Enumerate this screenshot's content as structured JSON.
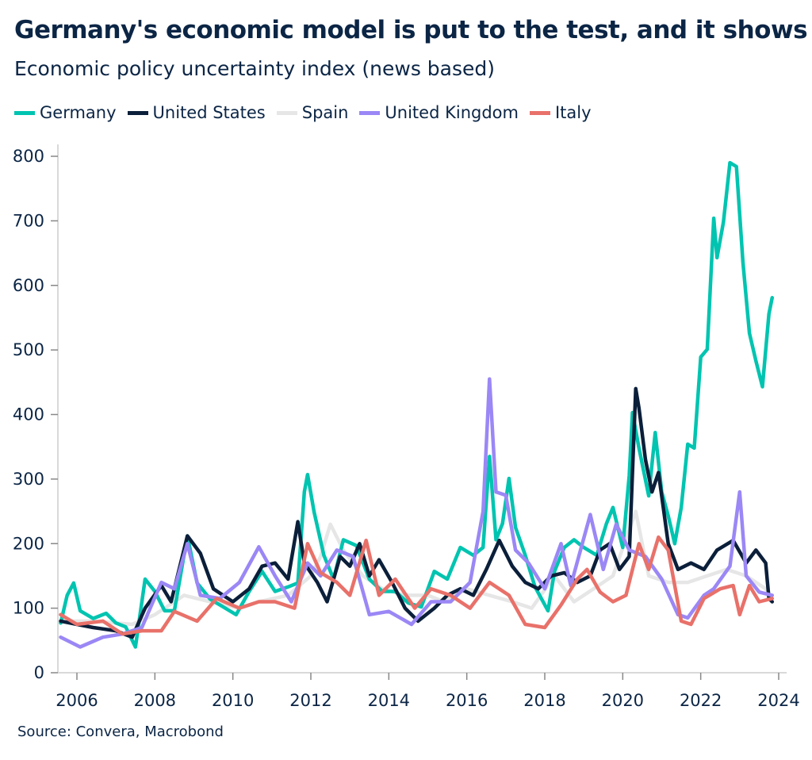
{
  "chart_data": {
    "type": "line",
    "title": "Germany's economic model is put to the test, and it shows",
    "subtitle": "Economic policy uncertainty index (news based)",
    "source": "Source: Convera, Macrobond",
    "xlabel": "",
    "ylabel": "",
    "xlim": [
      "2005-07",
      "2024-02"
    ],
    "ylim": [
      0,
      800
    ],
    "yticks": [
      0,
      100,
      200,
      300,
      400,
      500,
      600,
      700,
      800
    ],
    "xticks": [
      "2006",
      "2008",
      "2010",
      "2012",
      "2014",
      "2016",
      "2018",
      "2020",
      "2022",
      "2024"
    ],
    "grid": false,
    "legend_position": "top-left",
    "series": [
      {
        "name": "Germany",
        "color": "#00c4b0",
        "points": [
          [
            "2005-08",
            77
          ],
          [
            "2005-10",
            120
          ],
          [
            "2005-12",
            139
          ],
          [
            "2006-02",
            96
          ],
          [
            "2006-06",
            84
          ],
          [
            "2006-10",
            92
          ],
          [
            "2007-01",
            77
          ],
          [
            "2007-04",
            71
          ],
          [
            "2007-07",
            40
          ],
          [
            "2007-10",
            145
          ],
          [
            "2008-01",
            126
          ],
          [
            "2008-04",
            96
          ],
          [
            "2008-07",
            96
          ],
          [
            "2008-11",
            212
          ],
          [
            "2009-02",
            139
          ],
          [
            "2009-06",
            114
          ],
          [
            "2009-10",
            102
          ],
          [
            "2010-02",
            90
          ],
          [
            "2010-06",
            126
          ],
          [
            "2010-10",
            157
          ],
          [
            "2011-02",
            126
          ],
          [
            "2011-06",
            133
          ],
          [
            "2011-09",
            139
          ],
          [
            "2011-11",
            280
          ],
          [
            "2011-12",
            307
          ],
          [
            "2012-02",
            249
          ],
          [
            "2012-05",
            182
          ],
          [
            "2012-08",
            145
          ],
          [
            "2012-11",
            206
          ],
          [
            "2013-03",
            197
          ],
          [
            "2013-07",
            145
          ],
          [
            "2013-11",
            126
          ],
          [
            "2014-03",
            126
          ],
          [
            "2014-07",
            108
          ],
          [
            "2014-11",
            102
          ],
          [
            "2015-03",
            157
          ],
          [
            "2015-07",
            145
          ],
          [
            "2015-11",
            194
          ],
          [
            "2016-03",
            182
          ],
          [
            "2016-06",
            194
          ],
          [
            "2016-08",
            335
          ],
          [
            "2016-10",
            206
          ],
          [
            "2016-12",
            231
          ],
          [
            "2017-02",
            301
          ],
          [
            "2017-04",
            225
          ],
          [
            "2017-07",
            182
          ],
          [
            "2017-10",
            133
          ],
          [
            "2018-02",
            96
          ],
          [
            "2018-04",
            157
          ],
          [
            "2018-07",
            194
          ],
          [
            "2018-10",
            206
          ],
          [
            "2019-01",
            194
          ],
          [
            "2019-05",
            182
          ],
          [
            "2019-08",
            231
          ],
          [
            "2019-10",
            256
          ],
          [
            "2020-01",
            194
          ],
          [
            "2020-03",
            305
          ],
          [
            "2020-04",
            403
          ],
          [
            "2020-06",
            348
          ],
          [
            "2020-09",
            274
          ],
          [
            "2020-11",
            372
          ],
          [
            "2021-01",
            280
          ],
          [
            "2021-03",
            243
          ],
          [
            "2021-05",
            200
          ],
          [
            "2021-07",
            256
          ],
          [
            "2021-09",
            354
          ],
          [
            "2021-11",
            348
          ],
          [
            "2022-01",
            489
          ],
          [
            "2022-03",
            501
          ],
          [
            "2022-05",
            704
          ],
          [
            "2022-06",
            643
          ],
          [
            "2022-08",
            698
          ],
          [
            "2022-10",
            790
          ],
          [
            "2022-12",
            784
          ],
          [
            "2023-02",
            636
          ],
          [
            "2023-04",
            526
          ],
          [
            "2023-06",
            483
          ],
          [
            "2023-08",
            443
          ],
          [
            "2023-10",
            556
          ],
          [
            "2023-11",
            581
          ]
        ]
      },
      {
        "name": "United States",
        "color": "#0b1f3a",
        "points": [
          [
            "2005-08",
            80
          ],
          [
            "2006-01",
            75
          ],
          [
            "2006-06",
            70
          ],
          [
            "2007-01",
            65
          ],
          [
            "2007-06",
            55
          ],
          [
            "2007-10",
            100
          ],
          [
            "2008-03",
            135
          ],
          [
            "2008-06",
            110
          ],
          [
            "2008-11",
            212
          ],
          [
            "2009-03",
            185
          ],
          [
            "2009-07",
            130
          ],
          [
            "2010-01",
            110
          ],
          [
            "2010-06",
            130
          ],
          [
            "2010-10",
            165
          ],
          [
            "2011-02",
            170
          ],
          [
            "2011-06",
            145
          ],
          [
            "2011-09",
            234
          ],
          [
            "2011-11",
            170
          ],
          [
            "2012-03",
            140
          ],
          [
            "2012-06",
            110
          ],
          [
            "2012-10",
            180
          ],
          [
            "2013-01",
            165
          ],
          [
            "2013-04",
            200
          ],
          [
            "2013-07",
            150
          ],
          [
            "2013-10",
            175
          ],
          [
            "2014-02",
            140
          ],
          [
            "2014-06",
            100
          ],
          [
            "2014-10",
            80
          ],
          [
            "2015-03",
            100
          ],
          [
            "2015-07",
            120
          ],
          [
            "2015-11",
            130
          ],
          [
            "2016-03",
            120
          ],
          [
            "2016-07",
            160
          ],
          [
            "2016-11",
            205
          ],
          [
            "2017-03",
            165
          ],
          [
            "2017-07",
            140
          ],
          [
            "2017-11",
            130
          ],
          [
            "2018-03",
            150
          ],
          [
            "2018-07",
            155
          ],
          [
            "2018-11",
            140
          ],
          [
            "2019-03",
            150
          ],
          [
            "2019-06",
            190
          ],
          [
            "2019-09",
            200
          ],
          [
            "2019-12",
            160
          ],
          [
            "2020-03",
            180
          ],
          [
            "2020-05",
            440
          ],
          [
            "2020-06",
            410
          ],
          [
            "2020-08",
            330
          ],
          [
            "2020-10",
            280
          ],
          [
            "2020-12",
            310
          ],
          [
            "2021-03",
            200
          ],
          [
            "2021-06",
            160
          ],
          [
            "2021-10",
            170
          ],
          [
            "2022-02",
            160
          ],
          [
            "2022-06",
            190
          ],
          [
            "2022-11",
            205
          ],
          [
            "2023-03",
            170
          ],
          [
            "2023-06",
            190
          ],
          [
            "2023-09",
            170
          ],
          [
            "2023-10",
            115
          ],
          [
            "2023-11",
            110
          ]
        ]
      },
      {
        "name": "Spain",
        "color": "#e6e6e6",
        "points": [
          [
            "2005-08",
            80
          ],
          [
            "2006-06",
            80
          ],
          [
            "2007-06",
            75
          ],
          [
            "2008-01",
            90
          ],
          [
            "2008-10",
            120
          ],
          [
            "2009-06",
            110
          ],
          [
            "2010-03",
            100
          ],
          [
            "2010-09",
            110
          ],
          [
            "2011-06",
            120
          ],
          [
            "2012-01",
            150
          ],
          [
            "2012-04",
            180
          ],
          [
            "2012-07",
            230
          ],
          [
            "2012-11",
            190
          ],
          [
            "2013-05",
            150
          ],
          [
            "2013-11",
            130
          ],
          [
            "2014-06",
            120
          ],
          [
            "2015-01",
            120
          ],
          [
            "2015-06",
            110
          ],
          [
            "2016-01",
            130
          ],
          [
            "2016-08",
            120
          ],
          [
            "2017-03",
            110
          ],
          [
            "2017-09",
            100
          ],
          [
            "2018-04",
            150
          ],
          [
            "2018-10",
            110
          ],
          [
            "2019-04",
            130
          ],
          [
            "2019-10",
            150
          ],
          [
            "2020-05",
            250
          ],
          [
            "2020-09",
            150
          ],
          [
            "2021-03",
            140
          ],
          [
            "2021-09",
            140
          ],
          [
            "2022-03",
            150
          ],
          [
            "2022-09",
            160
          ],
          [
            "2023-03",
            150
          ],
          [
            "2023-09",
            130
          ],
          [
            "2023-11",
            115
          ]
        ]
      },
      {
        "name": "United Kingdom",
        "color": "#9b87f5",
        "points": [
          [
            "2005-08",
            55
          ],
          [
            "2006-02",
            40
          ],
          [
            "2006-09",
            55
          ],
          [
            "2007-03",
            60
          ],
          [
            "2007-09",
            70
          ],
          [
            "2008-03",
            140
          ],
          [
            "2008-07",
            130
          ],
          [
            "2008-11",
            200
          ],
          [
            "2009-03",
            120
          ],
          [
            "2009-09",
            115
          ],
          [
            "2010-03",
            140
          ],
          [
            "2010-09",
            195
          ],
          [
            "2011-02",
            150
          ],
          [
            "2011-07",
            110
          ],
          [
            "2011-12",
            170
          ],
          [
            "2012-04",
            150
          ],
          [
            "2012-09",
            190
          ],
          [
            "2013-02",
            180
          ],
          [
            "2013-07",
            90
          ],
          [
            "2014-01",
            95
          ],
          [
            "2014-08",
            75
          ],
          [
            "2015-02",
            110
          ],
          [
            "2015-08",
            110
          ],
          [
            "2016-02",
            140
          ],
          [
            "2016-06",
            250
          ],
          [
            "2016-08",
            455
          ],
          [
            "2016-10",
            280
          ],
          [
            "2017-01",
            275
          ],
          [
            "2017-04",
            190
          ],
          [
            "2017-08",
            170
          ],
          [
            "2018-01",
            130
          ],
          [
            "2018-06",
            200
          ],
          [
            "2018-09",
            135
          ],
          [
            "2019-03",
            245
          ],
          [
            "2019-07",
            160
          ],
          [
            "2019-11",
            230
          ],
          [
            "2020-03",
            190
          ],
          [
            "2020-08",
            180
          ],
          [
            "2021-01",
            145
          ],
          [
            "2021-06",
            90
          ],
          [
            "2021-09",
            85
          ],
          [
            "2022-02",
            120
          ],
          [
            "2022-05",
            130
          ],
          [
            "2022-10",
            165
          ],
          [
            "2023-01",
            280
          ],
          [
            "2023-03",
            150
          ],
          [
            "2023-07",
            125
          ],
          [
            "2023-11",
            120
          ]
        ]
      },
      {
        "name": "Italy",
        "color": "#e8716a",
        "points": [
          [
            "2005-08",
            90
          ],
          [
            "2006-01",
            75
          ],
          [
            "2006-09",
            80
          ],
          [
            "2007-03",
            60
          ],
          [
            "2007-09",
            65
          ],
          [
            "2008-03",
            65
          ],
          [
            "2008-07",
            95
          ],
          [
            "2009-02",
            80
          ],
          [
            "2009-08",
            115
          ],
          [
            "2010-03",
            100
          ],
          [
            "2010-09",
            110
          ],
          [
            "2011-02",
            110
          ],
          [
            "2011-08",
            100
          ],
          [
            "2011-12",
            200
          ],
          [
            "2012-04",
            155
          ],
          [
            "2012-09",
            140
          ],
          [
            "2013-01",
            120
          ],
          [
            "2013-06",
            205
          ],
          [
            "2013-10",
            120
          ],
          [
            "2014-03",
            145
          ],
          [
            "2014-09",
            100
          ],
          [
            "2015-02",
            130
          ],
          [
            "2015-08",
            120
          ],
          [
            "2016-02",
            100
          ],
          [
            "2016-08",
            140
          ],
          [
            "2017-02",
            120
          ],
          [
            "2017-07",
            75
          ],
          [
            "2018-01",
            70
          ],
          [
            "2018-06",
            105
          ],
          [
            "2018-11",
            145
          ],
          [
            "2019-02",
            160
          ],
          [
            "2019-06",
            125
          ],
          [
            "2019-10",
            110
          ],
          [
            "2020-02",
            120
          ],
          [
            "2020-06",
            200
          ],
          [
            "2020-09",
            160
          ],
          [
            "2020-12",
            210
          ],
          [
            "2021-03",
            190
          ],
          [
            "2021-07",
            80
          ],
          [
            "2021-10",
            75
          ],
          [
            "2022-02",
            115
          ],
          [
            "2022-07",
            130
          ],
          [
            "2022-11",
            135
          ],
          [
            "2023-01",
            90
          ],
          [
            "2023-04",
            135
          ],
          [
            "2023-07",
            110
          ],
          [
            "2023-11",
            115
          ]
        ]
      }
    ]
  }
}
